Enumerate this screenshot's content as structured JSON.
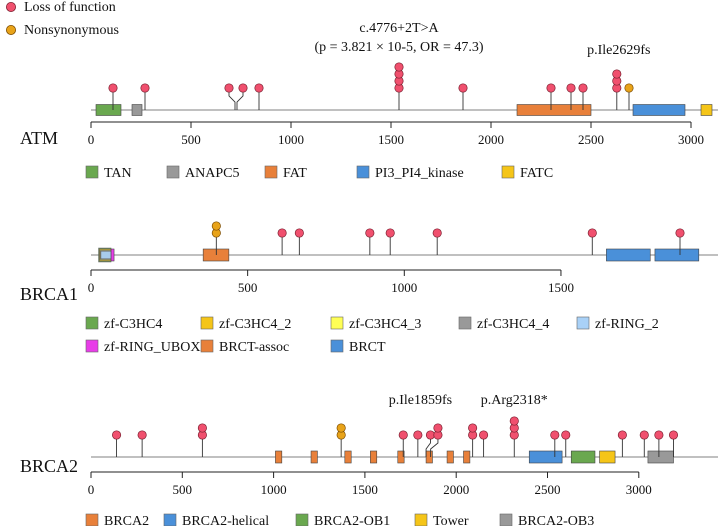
{
  "colors": {
    "loss": "#f0506e",
    "nonsyn": "#e8a319",
    "backbone": "#9a9a9a",
    "axis": "#222222",
    "stem": "#333333"
  },
  "legend": {
    "loss_label": "Loss of function",
    "nonsyn_label": "Nonsynonymous"
  },
  "chart_data": {
    "type": "lollipop",
    "genes": [
      {
        "name": "ATM",
        "xlim": [
          0,
          3056
        ],
        "ticks": [
          0,
          500,
          1000,
          1500,
          2000,
          2500,
          3000
        ],
        "domains": [
          {
            "name": "TAN",
            "start": 25,
            "end": 150,
            "color": "#6aa84f"
          },
          {
            "name": "ANAPC5",
            "start": 205,
            "end": 255,
            "color": "#999999"
          },
          {
            "name": "FAT",
            "start": 2130,
            "end": 2500,
            "color": "#e8803a"
          },
          {
            "name": "PI3_PI4_kinase",
            "start": 2710,
            "end": 2970,
            "color": "#4a90d9"
          },
          {
            "name": "FATC",
            "start": 3050,
            "end": 3105,
            "color": "#f5c518"
          }
        ],
        "legend_order": [
          "TAN",
          "ANAPC5",
          "FAT",
          "PI3_PI4_kinase",
          "FATC"
        ],
        "legend_labels": [
          "TAN",
          "ANAPC5",
          "FAT",
          "PI3_PI4_kinase",
          "FATC"
        ],
        "mutations": [
          {
            "pos": 110,
            "loss": 1,
            "nonsyn": 0
          },
          {
            "pos": 270,
            "loss": 1,
            "nonsyn": 0
          },
          {
            "pos": 690,
            "loss": 1,
            "nonsyn": 0,
            "stem_to": 720
          },
          {
            "pos": 760,
            "loss": 1,
            "nonsyn": 0,
            "stem_to": 730
          },
          {
            "pos": 840,
            "loss": 1,
            "nonsyn": 0
          },
          {
            "pos": 1540,
            "loss": 4,
            "nonsyn": 0
          },
          {
            "pos": 1860,
            "loss": 1,
            "nonsyn": 0
          },
          {
            "pos": 2300,
            "loss": 1,
            "nonsyn": 0
          },
          {
            "pos": 2400,
            "loss": 1,
            "nonsyn": 0
          },
          {
            "pos": 2460,
            "loss": 1,
            "nonsyn": 0
          },
          {
            "pos": 2629,
            "loss": 3,
            "nonsyn": 0
          },
          {
            "pos": 2690,
            "loss": 0,
            "nonsyn": 1
          }
        ],
        "annotations": [
          {
            "pos": 1540,
            "line1": "c.4776+2T>A",
            "line2": "(p = 3.821 × 10-5, OR = 47.3)"
          },
          {
            "pos": 2629,
            "line1": "p.Ile2629fs"
          }
        ]
      },
      {
        "name": "BRCA1",
        "xlim": [
          0,
          1863
        ],
        "ticks": [
          0,
          500,
          1000,
          1500
        ],
        "domains": [
          {
            "name": "zf-C3HC4",
            "start": 24,
            "end": 64,
            "color": "#6aa84f"
          },
          {
            "name": "zf-C3HC4_2",
            "start": 24,
            "end": 64,
            "color": "#f5c518"
          },
          {
            "name": "zf-C3HC4_3",
            "start": 24,
            "end": 64,
            "color": "#ffff55"
          },
          {
            "name": "zf-C3HC4_4",
            "start": 24,
            "end": 64,
            "color": "#999999"
          },
          {
            "name": "zf-RING_2",
            "start": 24,
            "end": 64,
            "color": "#a9d1f7"
          },
          {
            "name": "zf-RING_UBOX",
            "start": 64,
            "end": 70,
            "color": "#e83de8"
          },
          {
            "name": "BRCT-assoc",
            "start": 358,
            "end": 440,
            "color": "#e8803a"
          },
          {
            "name": "BRCT",
            "start": 1645,
            "end": 1785,
            "color": "#4a90d9"
          },
          {
            "name": "BRCT",
            "start": 1800,
            "end": 1940,
            "color": "#4a90d9"
          }
        ],
        "legend_labels": [
          "zf-C3HC4",
          "zf-C3HC4_2",
          "zf-C3HC4_3",
          "zf-C3HC4_4",
          "zf-RING_2",
          "zf-RING_UBOX",
          "BRCT-assoc",
          "BRCT"
        ],
        "mutations": [
          {
            "pos": 400,
            "loss": 0,
            "nonsyn": 2
          },
          {
            "pos": 610,
            "loss": 1,
            "nonsyn": 0
          },
          {
            "pos": 665,
            "loss": 1,
            "nonsyn": 0
          },
          {
            "pos": 890,
            "loss": 1,
            "nonsyn": 0
          },
          {
            "pos": 955,
            "loss": 1,
            "nonsyn": 0
          },
          {
            "pos": 1105,
            "loss": 1,
            "nonsyn": 0
          },
          {
            "pos": 1600,
            "loss": 1,
            "nonsyn": 0
          },
          {
            "pos": 1880,
            "loss": 1,
            "nonsyn": 0
          }
        ],
        "annotations": []
      },
      {
        "name": "BRCA2",
        "xlim": [
          0,
          3418
        ],
        "ticks": [
          0,
          500,
          1000,
          1500,
          2000,
          2500,
          3000
        ],
        "domains": [
          {
            "name": "BRCA2",
            "start": 1010,
            "end": 1045,
            "color": "#e8803a"
          },
          {
            "name": "BRCA2",
            "start": 1205,
            "end": 1240,
            "color": "#e8803a"
          },
          {
            "name": "BRCA2",
            "start": 1390,
            "end": 1425,
            "color": "#e8803a"
          },
          {
            "name": "BRCA2",
            "start": 1530,
            "end": 1565,
            "color": "#e8803a"
          },
          {
            "name": "BRCA2",
            "start": 1680,
            "end": 1715,
            "color": "#e8803a"
          },
          {
            "name": "BRCA2",
            "start": 1835,
            "end": 1870,
            "color": "#e8803a"
          },
          {
            "name": "BRCA2",
            "start": 1950,
            "end": 1985,
            "color": "#e8803a"
          },
          {
            "name": "BRCA2",
            "start": 2040,
            "end": 2075,
            "color": "#e8803a"
          },
          {
            "name": "BRCA2-helical",
            "start": 2400,
            "end": 2580,
            "color": "#4a90d9"
          },
          {
            "name": "BRCA2-OB1",
            "start": 2630,
            "end": 2760,
            "color": "#6aa84f"
          },
          {
            "name": "Tower",
            "start": 2785,
            "end": 2870,
            "color": "#f5c518"
          },
          {
            "name": "BRCA2-OB3",
            "start": 3050,
            "end": 3190,
            "color": "#999999"
          }
        ],
        "legend_labels": [
          "BRCA2",
          "BRCA2-helical",
          "BRCA2-OB1",
          "Tower",
          "BRCA2-OB3"
        ],
        "mutations": [
          {
            "pos": 140,
            "loss": 1,
            "nonsyn": 0
          },
          {
            "pos": 280,
            "loss": 1,
            "nonsyn": 0
          },
          {
            "pos": 610,
            "loss": 2,
            "nonsyn": 0
          },
          {
            "pos": 1370,
            "loss": 0,
            "nonsyn": 2
          },
          {
            "pos": 1710,
            "loss": 1,
            "nonsyn": 0
          },
          {
            "pos": 1790,
            "loss": 1,
            "nonsyn": 0
          },
          {
            "pos": 1859,
            "loss": 1,
            "nonsyn": 0,
            "stem_to": 1835
          },
          {
            "pos": 1900,
            "loss": 2,
            "nonsyn": 0,
            "stem_to": 1860
          },
          {
            "pos": 2090,
            "loss": 2,
            "nonsyn": 0
          },
          {
            "pos": 2150,
            "loss": 1,
            "nonsyn": 0
          },
          {
            "pos": 2318,
            "loss": 3,
            "nonsyn": 0
          },
          {
            "pos": 2540,
            "loss": 1,
            "nonsyn": 0
          },
          {
            "pos": 2600,
            "loss": 1,
            "nonsyn": 0
          },
          {
            "pos": 2910,
            "loss": 1,
            "nonsyn": 0
          },
          {
            "pos": 3030,
            "loss": 1,
            "nonsyn": 0
          },
          {
            "pos": 3110,
            "loss": 1,
            "nonsyn": 0
          },
          {
            "pos": 3190,
            "loss": 1,
            "nonsyn": 0
          }
        ],
        "annotations": [
          {
            "pos": 1859,
            "line1": "p.Ile1859fs"
          },
          {
            "pos": 2318,
            "line1": "p.Arg2318*"
          }
        ]
      }
    ]
  }
}
